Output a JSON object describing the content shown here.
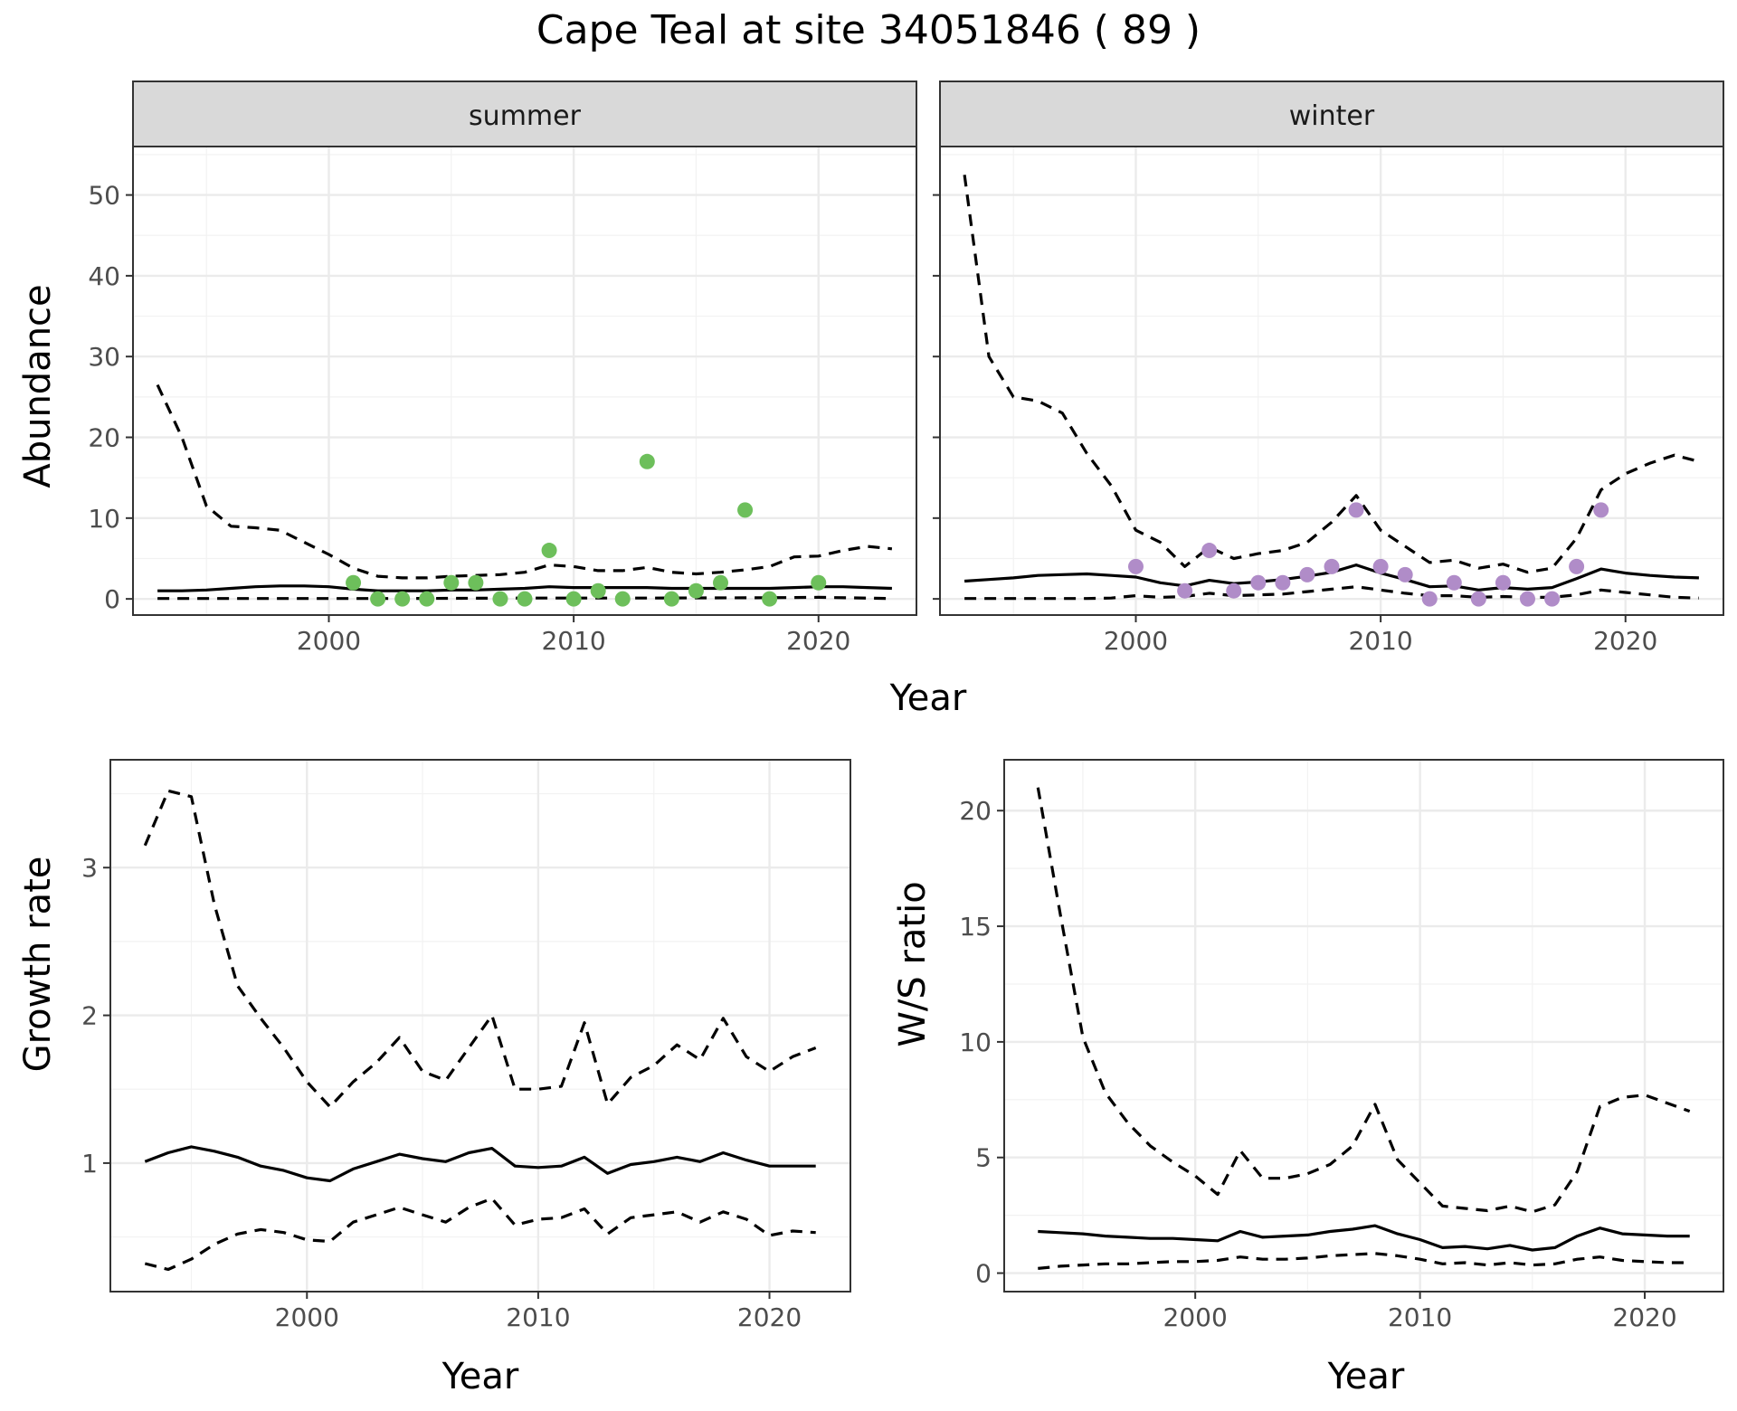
{
  "title": "Cape Teal at site 34051846 ( 89 )",
  "chart_data": [
    {
      "type": "line",
      "panel": "summer",
      "xlabel": "Year",
      "ylabel": "Abundance",
      "xlim": [
        1992,
        2024
      ],
      "ylim": [
        -2,
        56
      ],
      "x_ticks": [
        2000,
        2010,
        2020
      ],
      "y_ticks": [
        0,
        10,
        20,
        30,
        40,
        50
      ],
      "grid": true,
      "point_color": "#6dbf5b",
      "series": [
        {
          "role": "estimate",
          "style": "solid",
          "x": [
            1993,
            1994,
            1995,
            1996,
            1997,
            1998,
            1999,
            2000,
            2001,
            2002,
            2003,
            2004,
            2005,
            2006,
            2007,
            2008,
            2009,
            2010,
            2011,
            2012,
            2013,
            2014,
            2015,
            2016,
            2017,
            2018,
            2019,
            2020,
            2021,
            2022,
            2023
          ],
          "y": [
            1.0,
            1.0,
            1.1,
            1.3,
            1.5,
            1.6,
            1.6,
            1.5,
            1.2,
            1.0,
            1.0,
            1.0,
            1.1,
            1.1,
            1.2,
            1.3,
            1.5,
            1.4,
            1.4,
            1.4,
            1.4,
            1.3,
            1.3,
            1.3,
            1.3,
            1.3,
            1.4,
            1.5,
            1.5,
            1.4,
            1.3
          ]
        },
        {
          "role": "upper",
          "style": "dashed",
          "x": [
            1993,
            1994,
            1995,
            1996,
            1997,
            1998,
            1999,
            2000,
            2001,
            2002,
            2003,
            2004,
            2005,
            2006,
            2007,
            2008,
            2009,
            2010,
            2011,
            2012,
            2013,
            2014,
            2015,
            2016,
            2017,
            2018,
            2019,
            2020,
            2021,
            2022,
            2023
          ],
          "y": [
            26.5,
            20,
            11.5,
            9,
            8.8,
            8.5,
            7,
            5.5,
            3.8,
            2.8,
            2.6,
            2.6,
            2.8,
            2.9,
            3.0,
            3.3,
            4.2,
            4.0,
            3.5,
            3.5,
            3.9,
            3.3,
            3.1,
            3.3,
            3.6,
            4.0,
            5.2,
            5.3,
            6.0,
            6.5,
            6.2
          ]
        },
        {
          "role": "lower",
          "style": "dashed",
          "x": [
            1993,
            1998,
            2003,
            2008,
            2013,
            2018,
            2020,
            2023
          ],
          "y": [
            0.05,
            0.05,
            0.05,
            0.1,
            0.1,
            0.15,
            0.2,
            0.05
          ]
        },
        {
          "role": "observed",
          "style": "points",
          "x": [
            2001,
            2002,
            2003,
            2004,
            2005,
            2006,
            2007,
            2008,
            2009,
            2010,
            2011,
            2012,
            2013,
            2014,
            2015,
            2016,
            2017,
            2018,
            2020
          ],
          "y": [
            2,
            0,
            0,
            0,
            2,
            2,
            0,
            0,
            6,
            0,
            1,
            0,
            17,
            0,
            1,
            2,
            11,
            0,
            2
          ]
        }
      ]
    },
    {
      "type": "line",
      "panel": "winter",
      "xlabel": "Year",
      "ylabel": "Abundance",
      "xlim": [
        1992,
        2024
      ],
      "ylim": [
        -2,
        56
      ],
      "x_ticks": [
        2000,
        2010,
        2020
      ],
      "y_ticks": [
        0,
        10,
        20,
        30,
        40,
        50
      ],
      "grid": true,
      "point_color": "#b08cc8",
      "series": [
        {
          "role": "estimate",
          "style": "solid",
          "x": [
            1993,
            1994,
            1995,
            1996,
            1997,
            1998,
            1999,
            2000,
            2001,
            2002,
            2003,
            2004,
            2005,
            2006,
            2007,
            2008,
            2009,
            2010,
            2011,
            2012,
            2013,
            2014,
            2015,
            2016,
            2017,
            2018,
            2019,
            2020,
            2021,
            2022,
            2023
          ],
          "y": [
            2.2,
            2.4,
            2.6,
            2.9,
            3.0,
            3.1,
            2.9,
            2.7,
            2.0,
            1.6,
            2.3,
            1.9,
            2.1,
            2.4,
            2.8,
            3.3,
            4.2,
            3.2,
            2.4,
            1.5,
            1.6,
            1.1,
            1.4,
            1.2,
            1.4,
            2.5,
            3.7,
            3.2,
            2.9,
            2.7,
            2.6
          ]
        },
        {
          "role": "upper",
          "style": "dashed",
          "x": [
            1993,
            1994,
            1995,
            1996,
            1997,
            1998,
            1999,
            2000,
            2001,
            2002,
            2003,
            2004,
            2005,
            2006,
            2007,
            2008,
            2009,
            2010,
            2011,
            2012,
            2013,
            2014,
            2015,
            2016,
            2017,
            2018,
            2019,
            2020,
            2021,
            2022,
            2023
          ],
          "y": [
            52.5,
            30,
            25,
            24.5,
            23,
            18,
            14,
            8.5,
            7,
            4.0,
            6.4,
            5.0,
            5.6,
            6.0,
            7.0,
            9.5,
            12.8,
            8.5,
            6.5,
            4.5,
            4.8,
            3.8,
            4.3,
            3.3,
            3.8,
            7.5,
            13.5,
            15.5,
            16.8,
            17.8,
            17.0
          ]
        },
        {
          "role": "lower",
          "style": "dashed",
          "x": [
            1993,
            1994,
            1995,
            1996,
            1997,
            1998,
            1999,
            2000,
            2001,
            2002,
            2003,
            2004,
            2005,
            2006,
            2007,
            2008,
            2009,
            2010,
            2011,
            2012,
            2013,
            2014,
            2015,
            2016,
            2017,
            2018,
            2019,
            2020,
            2021,
            2022,
            2023
          ],
          "y": [
            0.05,
            0.05,
            0.05,
            0.05,
            0.05,
            0.05,
            0.1,
            0.4,
            0.2,
            0.3,
            0.7,
            0.4,
            0.5,
            0.6,
            0.9,
            1.2,
            1.5,
            1.1,
            0.7,
            0.4,
            0.4,
            0.2,
            0.3,
            0.2,
            0.2,
            0.5,
            1.1,
            0.8,
            0.5,
            0.2,
            0.1
          ]
        },
        {
          "role": "observed",
          "style": "points",
          "x": [
            2000,
            2002,
            2003,
            2004,
            2005,
            2006,
            2007,
            2008,
            2009,
            2010,
            2011,
            2012,
            2013,
            2014,
            2015,
            2016,
            2017,
            2018,
            2019
          ],
          "y": [
            4,
            1,
            6,
            1,
            2,
            2,
            3,
            4,
            11,
            4,
            3,
            0,
            2,
            0,
            2,
            0,
            0,
            4,
            11
          ]
        }
      ]
    },
    {
      "type": "line",
      "panel": "growth",
      "xlabel": "Year",
      "ylabel": "Growth rate",
      "xlim": [
        1991.5,
        2023.5
      ],
      "ylim": [
        0.13,
        3.73
      ],
      "x_ticks": [
        2000,
        2010,
        2020
      ],
      "y_ticks": [
        1,
        2,
        3
      ],
      "grid": true,
      "series": [
        {
          "role": "estimate",
          "style": "solid",
          "x": [
            1993,
            1994,
            1995,
            1996,
            1997,
            1998,
            1999,
            2000,
            2001,
            2002,
            2003,
            2004,
            2005,
            2006,
            2007,
            2008,
            2009,
            2010,
            2011,
            2012,
            2013,
            2014,
            2015,
            2016,
            2017,
            2018,
            2019,
            2020,
            2021,
            2022
          ],
          "y": [
            1.01,
            1.07,
            1.11,
            1.08,
            1.04,
            0.98,
            0.95,
            0.9,
            0.88,
            0.96,
            1.01,
            1.06,
            1.03,
            1.01,
            1.07,
            1.1,
            0.98,
            0.97,
            0.98,
            1.04,
            0.93,
            0.99,
            1.01,
            1.04,
            1.01,
            1.07,
            1.02,
            0.98,
            0.98,
            0.98
          ]
        },
        {
          "role": "upper",
          "style": "dashed",
          "x": [
            1993,
            1994,
            1995,
            1996,
            1997,
            1998,
            1999,
            2000,
            2001,
            2002,
            2003,
            2004,
            2005,
            2006,
            2007,
            2008,
            2009,
            2010,
            2011,
            2012,
            2013,
            2014,
            2015,
            2016,
            2017,
            2018,
            2019,
            2020,
            2021,
            2022
          ],
          "y": [
            3.15,
            3.52,
            3.48,
            2.75,
            2.2,
            1.98,
            1.78,
            1.55,
            1.38,
            1.55,
            1.68,
            1.85,
            1.62,
            1.56,
            1.78,
            2.0,
            1.5,
            1.5,
            1.52,
            1.95,
            1.4,
            1.58,
            1.66,
            1.8,
            1.7,
            1.98,
            1.72,
            1.62,
            1.72,
            1.78
          ]
        },
        {
          "role": "lower",
          "style": "dashed",
          "x": [
            1993,
            1994,
            1995,
            1996,
            1997,
            1998,
            1999,
            2000,
            2001,
            2002,
            2003,
            2004,
            2005,
            2006,
            2007,
            2008,
            2009,
            2010,
            2011,
            2012,
            2013,
            2014,
            2015,
            2016,
            2017,
            2018,
            2019,
            2020,
            2021,
            2022
          ],
          "y": [
            0.32,
            0.28,
            0.35,
            0.45,
            0.52,
            0.55,
            0.53,
            0.48,
            0.47,
            0.6,
            0.65,
            0.7,
            0.65,
            0.6,
            0.7,
            0.76,
            0.58,
            0.62,
            0.63,
            0.69,
            0.52,
            0.63,
            0.65,
            0.67,
            0.6,
            0.67,
            0.62,
            0.51,
            0.54,
            0.53
          ]
        }
      ]
    },
    {
      "type": "line",
      "panel": "ratio",
      "xlabel": "Year",
      "ylabel": "W/S ratio",
      "xlim": [
        1991.5,
        2023.5
      ],
      "ylim": [
        -0.8,
        22.2
      ],
      "x_ticks": [
        2000,
        2010,
        2020
      ],
      "y_ticks": [
        0,
        5,
        10,
        15,
        20
      ],
      "grid": true,
      "series": [
        {
          "role": "estimate",
          "style": "solid",
          "x": [
            1993,
            1994,
            1995,
            1996,
            1997,
            1998,
            1999,
            2000,
            2001,
            2002,
            2003,
            2004,
            2005,
            2006,
            2007,
            2008,
            2009,
            2010,
            2011,
            2012,
            2013,
            2014,
            2015,
            2016,
            2017,
            2018,
            2019,
            2020,
            2021,
            2022
          ],
          "y": [
            1.8,
            1.75,
            1.7,
            1.6,
            1.55,
            1.5,
            1.5,
            1.45,
            1.4,
            1.8,
            1.55,
            1.6,
            1.65,
            1.8,
            1.9,
            2.05,
            1.7,
            1.45,
            1.1,
            1.15,
            1.05,
            1.2,
            1.0,
            1.1,
            1.6,
            1.95,
            1.7,
            1.65,
            1.6,
            1.6
          ]
        },
        {
          "role": "upper",
          "style": "dashed",
          "x": [
            1993,
            1994,
            1995,
            1996,
            1997,
            1998,
            1999,
            2000,
            2001,
            2002,
            2003,
            2004,
            2005,
            2006,
            2007,
            2008,
            2009,
            2010,
            2011,
            2012,
            2013,
            2014,
            2015,
            2016,
            2017,
            2018,
            2019,
            2020,
            2021,
            2022
          ],
          "y": [
            21,
            15.5,
            10.2,
            7.8,
            6.5,
            5.5,
            4.8,
            4.2,
            3.4,
            5.3,
            4.1,
            4.1,
            4.3,
            4.7,
            5.5,
            7.3,
            4.9,
            3.9,
            2.9,
            2.8,
            2.7,
            2.9,
            2.65,
            2.95,
            4.4,
            7.2,
            7.6,
            7.7,
            7.35,
            7.0
          ]
        },
        {
          "role": "lower",
          "style": "dashed",
          "x": [
            1993,
            1994,
            1995,
            1996,
            1997,
            1998,
            1999,
            2000,
            2001,
            2002,
            2003,
            2004,
            2005,
            2006,
            2007,
            2008,
            2009,
            2010,
            2011,
            2012,
            2013,
            2014,
            2015,
            2016,
            2017,
            2018,
            2019,
            2020,
            2021,
            2022
          ],
          "y": [
            0.2,
            0.3,
            0.35,
            0.4,
            0.4,
            0.45,
            0.5,
            0.5,
            0.55,
            0.7,
            0.6,
            0.6,
            0.65,
            0.75,
            0.8,
            0.85,
            0.75,
            0.6,
            0.4,
            0.45,
            0.35,
            0.45,
            0.35,
            0.4,
            0.6,
            0.7,
            0.55,
            0.5,
            0.45,
            0.45
          ]
        }
      ]
    }
  ]
}
